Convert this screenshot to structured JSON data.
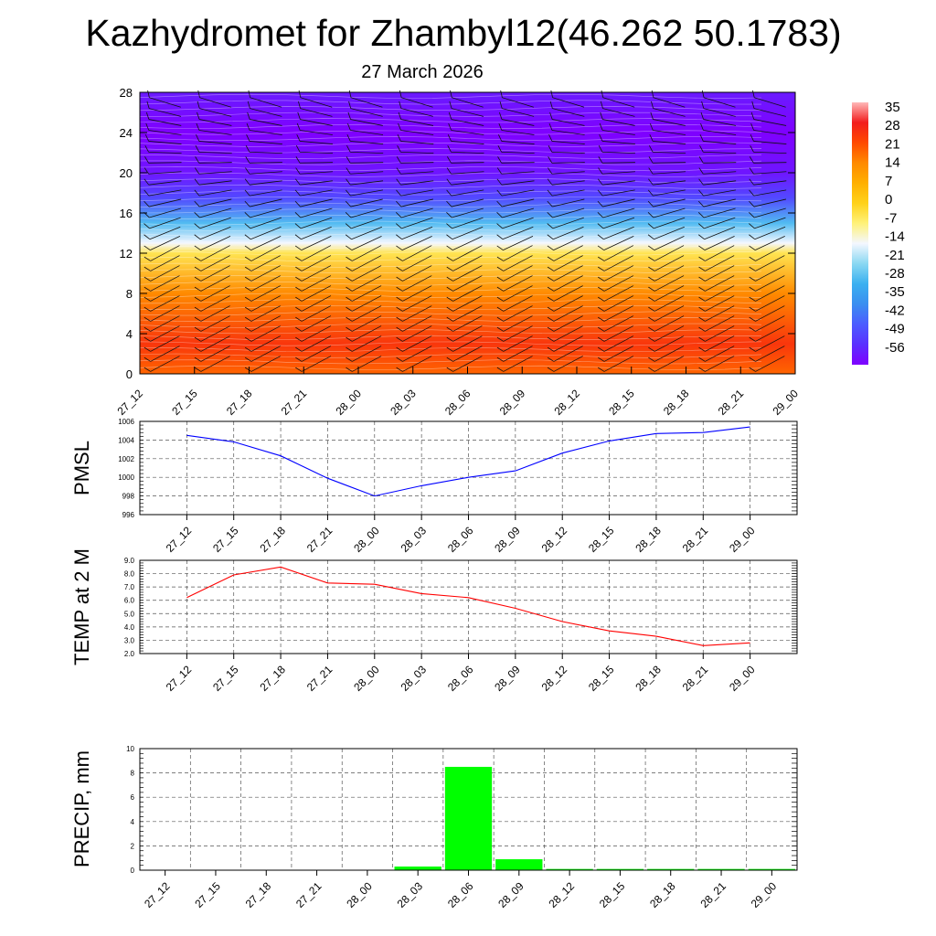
{
  "title": "Kazhydromet for Zhambyl12(46.262 50.1783)",
  "subtitle": "27 March 2026",
  "time_labels": [
    "27_12",
    "27_15",
    "27_18",
    "27_21",
    "28_00",
    "28_03",
    "28_06",
    "28_09",
    "28_12",
    "28_15",
    "28_18",
    "28_21",
    "29_00"
  ],
  "colors": {
    "pmsl_line": "#0000ff",
    "temp_line": "#ff0000",
    "precip_bar": "#00ff00"
  },
  "chart_data": [
    {
      "type": "heatmap",
      "title": "Kazhydromet for Zhambyl12(46.262 50.1783)",
      "subtitle": "27 March 2026",
      "xlabel": "",
      "ylabel": "",
      "categories": [
        "27_12",
        "27_15",
        "27_18",
        "27_21",
        "28_00",
        "28_03",
        "28_06",
        "28_09",
        "28_12",
        "28_15",
        "28_18",
        "28_21",
        "29_00"
      ],
      "y_ticks": [
        0,
        4,
        8,
        12,
        16,
        20,
        24,
        28
      ],
      "ylim": [
        0,
        28
      ],
      "colorbar_labels": [
        "35",
        "28",
        "21",
        "14",
        "7",
        "0",
        "-7",
        "-14",
        "-21",
        "-28",
        "-35",
        "-42",
        "-49",
        "-56"
      ],
      "colorbar_values": [
        35,
        28,
        21,
        14,
        7,
        0,
        -7,
        -14,
        -21,
        -28,
        -35,
        -42,
        -49,
        -56
      ],
      "wind_barbs": true,
      "temperature_profile": [
        {
          "level": 0,
          "value": 18
        },
        {
          "level": 3,
          "value": 24
        },
        {
          "level": 8,
          "value": 14
        },
        {
          "level": 12,
          "value": -4
        },
        {
          "level": 13,
          "value": -14
        },
        {
          "level": 15,
          "value": -26
        },
        {
          "level": 17.5,
          "value": -45
        },
        {
          "level": 20,
          "value": -53
        },
        {
          "level": 24,
          "value": -56
        },
        {
          "level": 28,
          "value": -52
        }
      ]
    },
    {
      "type": "line",
      "ylabel": "PMSL",
      "categories": [
        "27_12",
        "27_15",
        "27_18",
        "27_21",
        "28_00",
        "28_03",
        "28_06",
        "28_09",
        "28_12",
        "28_15",
        "28_18",
        "28_21",
        "29_00"
      ],
      "values": [
        1004.5,
        1003.8,
        1002.3,
        999.9,
        998.0,
        999.1,
        1000.0,
        1000.7,
        1002.6,
        1003.9,
        1004.7,
        1004.8,
        1005.4
      ],
      "ylim": [
        996,
        1006
      ],
      "y_ticks": [
        996,
        998,
        1000,
        1002,
        1004,
        1006
      ],
      "y_tick_labels": [
        "996",
        "998",
        "1000",
        "1002",
        "1004",
        "1006"
      ],
      "grid": true
    },
    {
      "type": "line",
      "ylabel": "TEMP at 2 M",
      "categories": [
        "27_12",
        "27_15",
        "27_18",
        "27_21",
        "28_00",
        "28_03",
        "28_06",
        "28_09",
        "28_12",
        "28_15",
        "28_18",
        "28_21",
        "29_00"
      ],
      "values": [
        6.2,
        7.9,
        8.5,
        7.3,
        7.2,
        6.5,
        6.2,
        5.4,
        4.4,
        3.7,
        3.3,
        2.6,
        2.8
      ],
      "ylim": [
        2.0,
        9.0
      ],
      "y_ticks": [
        2,
        3,
        4,
        5,
        6,
        7,
        8,
        9
      ],
      "y_tick_labels": [
        "2.0",
        "3.0",
        "4.0",
        "5.0",
        "6.0",
        "7.0",
        "8.0",
        "9.0"
      ],
      "grid": true
    },
    {
      "type": "bar",
      "ylabel": "PRECIP, mm",
      "categories": [
        "27_12",
        "27_15",
        "27_18",
        "27_21",
        "28_00",
        "28_03",
        "28_06",
        "28_09",
        "28_12",
        "28_15",
        "28_18",
        "28_21",
        "29_00"
      ],
      "values": [
        0,
        0,
        0,
        0,
        0,
        0.3,
        8.5,
        0.9,
        0.1,
        0.1,
        0.1,
        0.1,
        0.1
      ],
      "ylim": [
        0,
        10
      ],
      "y_ticks": [
        0,
        2,
        4,
        6,
        8,
        10
      ],
      "y_tick_labels": [
        "0",
        "2",
        "4",
        "6",
        "8",
        "10"
      ],
      "grid": true
    }
  ]
}
